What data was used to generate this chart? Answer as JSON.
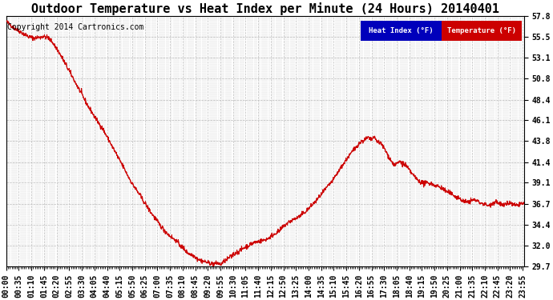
{
  "title": "Outdoor Temperature vs Heat Index per Minute (24 Hours) 20140401",
  "copyright": "Copyright 2014 Cartronics.com",
  "y_min": 29.7,
  "y_max": 57.8,
  "y_ticks": [
    29.7,
    32.0,
    34.4,
    36.7,
    39.1,
    41.4,
    43.8,
    46.1,
    48.4,
    50.8,
    53.1,
    55.5,
    57.8
  ],
  "bg_color": "#ffffff",
  "plot_bg_color": "#ffffff",
  "grid_color": "#bbbbbb",
  "line_color": "#cc0000",
  "legend_heat_bg": "#0000bb",
  "legend_temp_bg": "#cc0000",
  "legend_text_color": "#ffffff",
  "title_fontsize": 11,
  "tick_fontsize": 7,
  "copyright_fontsize": 7,
  "x_label_interval_minutes": 35,
  "minor_tick_interval_minutes": 5
}
